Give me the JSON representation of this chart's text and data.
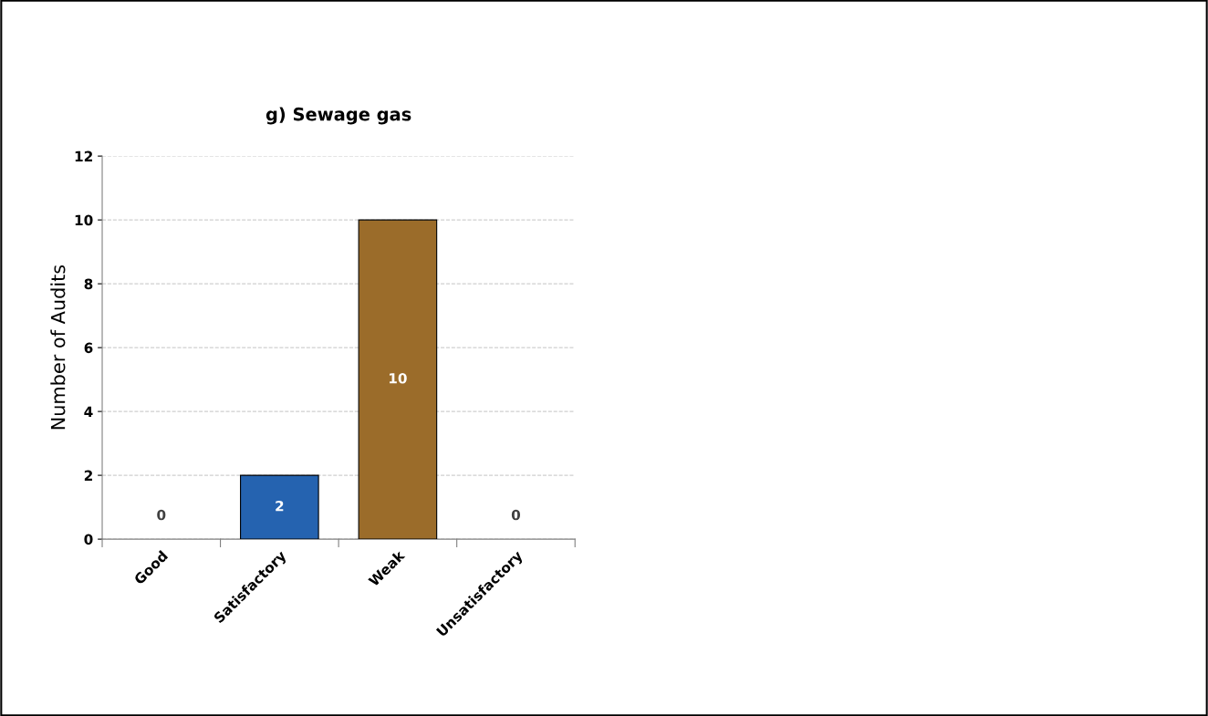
{
  "chart_data": {
    "type": "bar",
    "title": "g) Sewage gas",
    "ylabel": "Number of Audits",
    "categories": [
      "Good",
      "Satisfactory",
      "Weak",
      "Unsatisfactory"
    ],
    "values": [
      0,
      2,
      10,
      0
    ],
    "colors": [
      "#4f8a3c",
      "#2563b0",
      "#9b6c2a",
      "#c0392b"
    ],
    "ylim": [
      0,
      12
    ],
    "yticks": [
      0,
      2,
      4,
      6,
      8,
      10,
      12
    ],
    "grid": "y",
    "data_labels": true
  }
}
